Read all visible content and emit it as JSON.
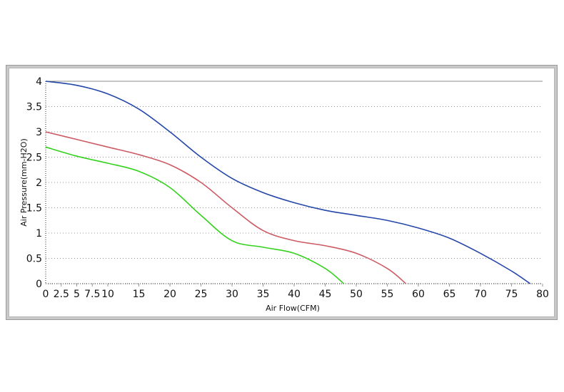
{
  "chart_data": {
    "type": "line",
    "title": "",
    "xlabel": "Air Flow(CFM)",
    "ylabel": "Air Pressure(mm-H2O)",
    "xlim": [
      0,
      80
    ],
    "ylim": [
      0,
      4
    ],
    "xticks": [
      "0",
      "2.5",
      "5",
      "7.5",
      "10",
      "15",
      "20",
      "25",
      "30",
      "35",
      "40",
      "45",
      "50",
      "55",
      "60",
      "65",
      "70",
      "75",
      "80"
    ],
    "xtick_values": [
      0,
      2.5,
      5,
      7.5,
      10,
      15,
      20,
      25,
      30,
      35,
      40,
      45,
      50,
      55,
      60,
      65,
      70,
      75,
      80
    ],
    "yticks": [
      "0",
      "0.5",
      "1",
      "1.5",
      "2",
      "2.5",
      "3",
      "3.5",
      "4"
    ],
    "ytick_values": [
      0,
      0.5,
      1,
      1.5,
      2,
      2.5,
      3,
      3.5,
      4
    ],
    "grid": "dotted",
    "series": [
      {
        "color": "#2446a8",
        "points": [
          [
            0,
            4.0
          ],
          [
            5,
            3.92
          ],
          [
            10,
            3.75
          ],
          [
            15,
            3.45
          ],
          [
            20,
            3.0
          ],
          [
            25,
            2.5
          ],
          [
            30,
            2.08
          ],
          [
            35,
            1.8
          ],
          [
            40,
            1.6
          ],
          [
            45,
            1.45
          ],
          [
            50,
            1.35
          ],
          [
            55,
            1.25
          ],
          [
            60,
            1.1
          ],
          [
            65,
            0.9
          ],
          [
            70,
            0.6
          ],
          [
            75,
            0.25
          ],
          [
            78,
            0.0
          ]
        ]
      },
      {
        "color": "#cc5a63",
        "points": [
          [
            0,
            3.0
          ],
          [
            5,
            2.85
          ],
          [
            10,
            2.7
          ],
          [
            15,
            2.55
          ],
          [
            20,
            2.35
          ],
          [
            25,
            2.0
          ],
          [
            30,
            1.5
          ],
          [
            35,
            1.05
          ],
          [
            40,
            0.85
          ],
          [
            45,
            0.75
          ],
          [
            50,
            0.6
          ],
          [
            55,
            0.3
          ],
          [
            58,
            0.0
          ]
        ]
      },
      {
        "color": "#33d21c",
        "points": [
          [
            0,
            2.7
          ],
          [
            5,
            2.52
          ],
          [
            10,
            2.38
          ],
          [
            15,
            2.22
          ],
          [
            20,
            1.9
          ],
          [
            25,
            1.35
          ],
          [
            30,
            0.85
          ],
          [
            35,
            0.72
          ],
          [
            40,
            0.6
          ],
          [
            45,
            0.3
          ],
          [
            48,
            0.0
          ]
        ]
      }
    ]
  }
}
